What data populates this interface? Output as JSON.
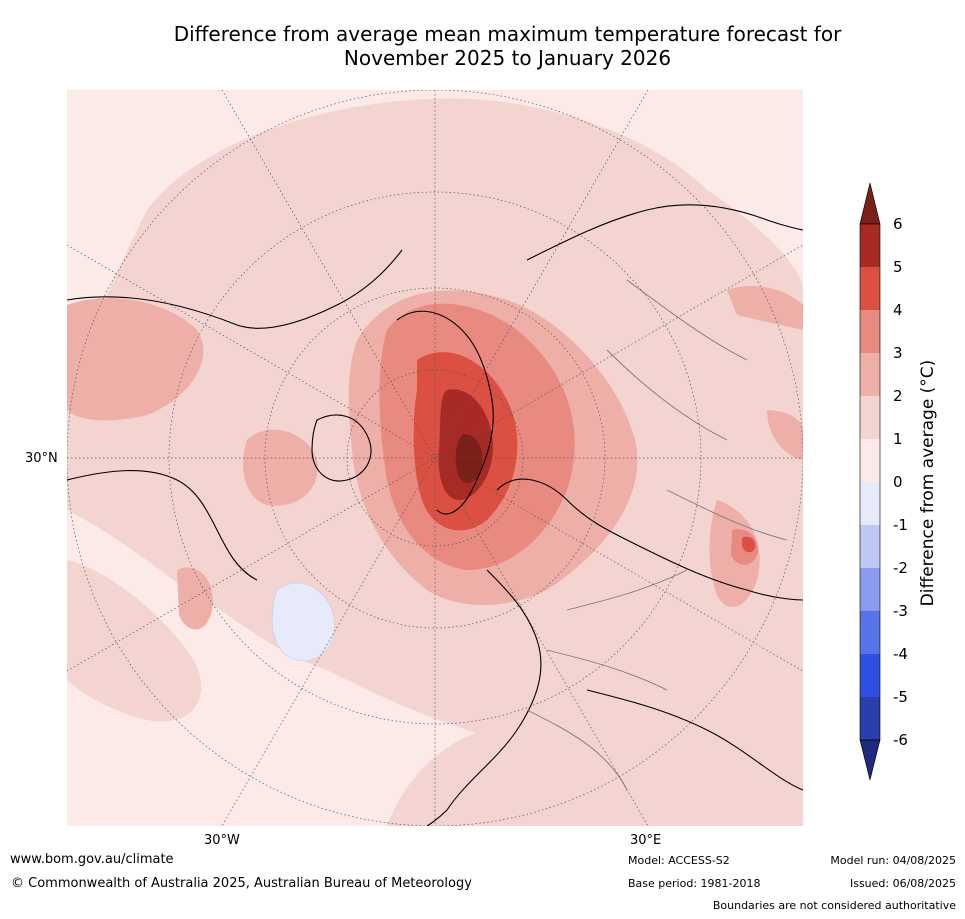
{
  "title": {
    "line1": "Difference from average mean maximum temperature forecast for",
    "line2": "November 2025 to January 2026"
  },
  "map": {
    "projection": "north-polar-stereographic",
    "lat_labels": [
      "30°N"
    ],
    "lon_labels": [
      "30°W",
      "30°E"
    ],
    "features": [
      {
        "name": "greenland-warm-anomaly",
        "value_range": [
          4,
          6
        ]
      },
      {
        "name": "siberia-warm-patch",
        "value_range": [
          3,
          5
        ]
      },
      {
        "name": "north-atlantic-cool-patch",
        "value_range": [
          -1,
          0
        ]
      }
    ]
  },
  "colorbar": {
    "title": "Difference from average (°C)",
    "ticks": [
      "6",
      "5",
      "4",
      "3",
      "2",
      "1",
      "0",
      "-1",
      "-2",
      "-3",
      "-4",
      "-5",
      "-6"
    ],
    "levels": [
      {
        "range": [
          5,
          6
        ],
        "color": "#a82a25"
      },
      {
        "range": [
          4,
          5
        ],
        "color": "#dc4f43"
      },
      {
        "range": [
          3,
          4
        ],
        "color": "#e88a80"
      },
      {
        "range": [
          2,
          3
        ],
        "color": "#eeafa8"
      },
      {
        "range": [
          1,
          2
        ],
        "color": "#f4d4d0"
      },
      {
        "range": [
          0,
          1
        ],
        "color": "#fbeae7"
      },
      {
        "range": [
          -1,
          0
        ],
        "color": "#e6eafa"
      },
      {
        "range": [
          -2,
          -1
        ],
        "color": "#bfc8f3"
      },
      {
        "range": [
          -3,
          -2
        ],
        "color": "#8a9aee"
      },
      {
        "range": [
          -4,
          -3
        ],
        "color": "#5872e7"
      },
      {
        "range": [
          -5,
          -4
        ],
        "color": "#2f4fe0"
      },
      {
        "range": [
          -6,
          -5
        ],
        "color": "#2a3fad"
      }
    ],
    "extend_max_color": "#7a2019",
    "extend_min_color": "#1f2a7a"
  },
  "footer": {
    "url": "www.bom.gov.au/climate",
    "copyright": "© Commonwealth of Australia 2025, Australian Bureau of Meteorology",
    "model": "Model: ACCESS-S2",
    "base_period": "Base period: 1981-2018",
    "model_run": "Model run: 04/08/2025",
    "issued": "Issued: 06/08/2025",
    "disclaimer": "Boundaries are not considered authoritative"
  }
}
